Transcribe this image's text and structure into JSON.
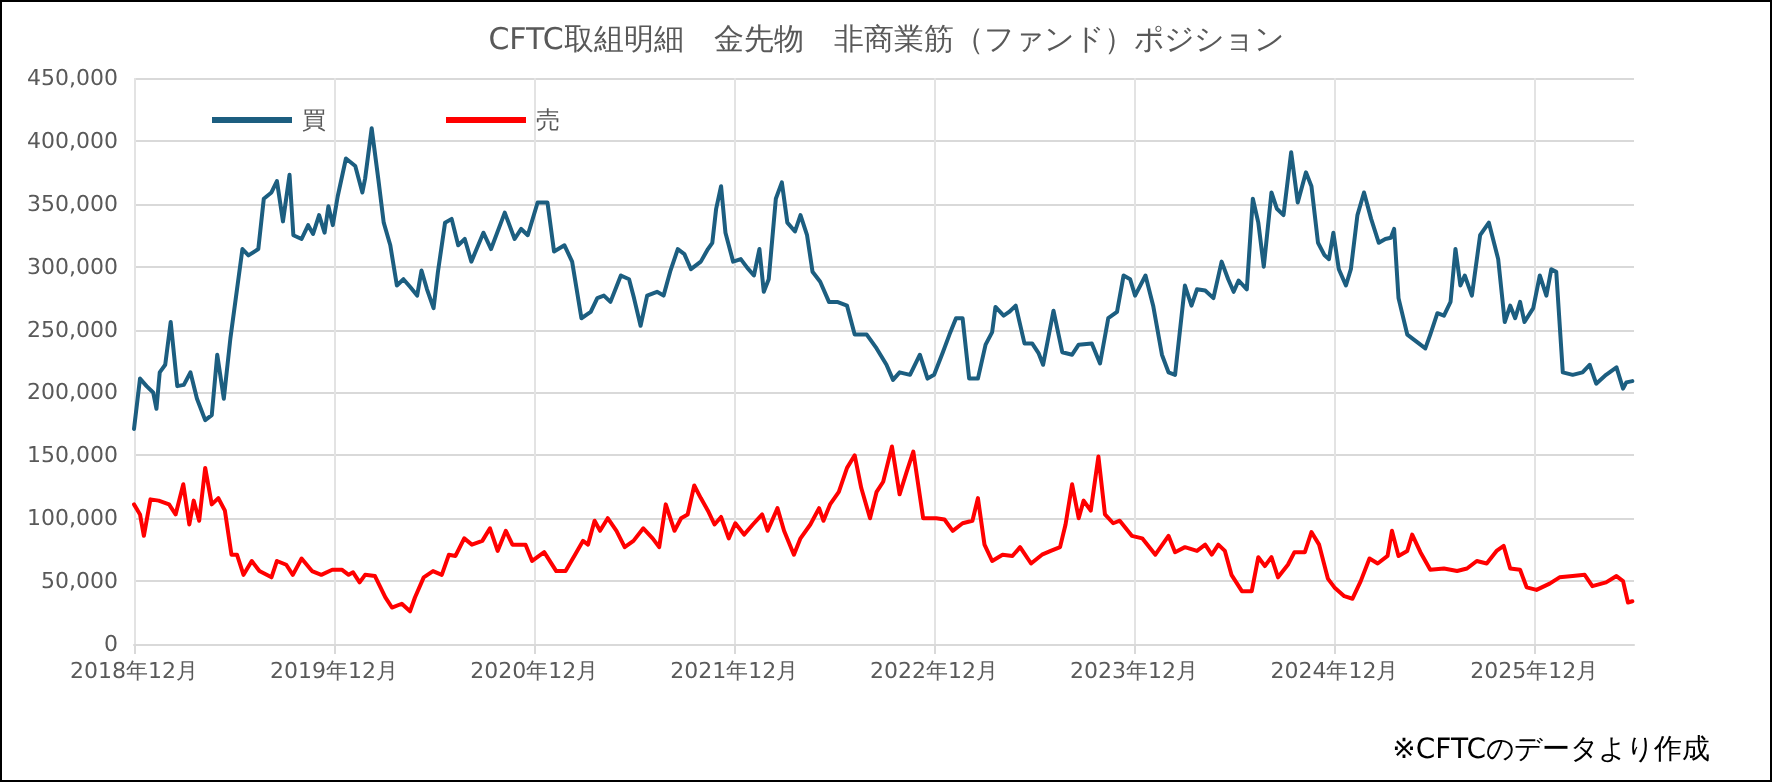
{
  "chart_data": {
    "type": "line",
    "title": "CFTC取組明細　金先物　非商業筋（ファンド）ポジション",
    "annotations": [
      "※CFTCのデータより作成"
    ],
    "xlim": [
      "2018-12-01",
      "2026-06-01"
    ],
    "xticks": [
      {
        "value": "2018-12-01",
        "label": "2018年12月"
      },
      {
        "value": "2019-12-01",
        "label": "2019年12月"
      },
      {
        "value": "2020-12-01",
        "label": "2020年12月"
      },
      {
        "value": "2021-12-01",
        "label": "2021年12月"
      },
      {
        "value": "2022-12-01",
        "label": "2022年12月"
      },
      {
        "value": "2023-12-01",
        "label": "2023年12月"
      },
      {
        "value": "2024-12-01",
        "label": "2024年12月"
      },
      {
        "value": "2025-12-01",
        "label": "2025年12月"
      }
    ],
    "ylim": [
      0,
      450000
    ],
    "yticks": [
      {
        "value": 0,
        "label": "0"
      },
      {
        "value": 50000,
        "label": "50,000"
      },
      {
        "value": 100000,
        "label": "100,000"
      },
      {
        "value": 150000,
        "label": "150,000"
      },
      {
        "value": 200000,
        "label": "200,000"
      },
      {
        "value": 250000,
        "label": "250,000"
      },
      {
        "value": 300000,
        "label": "300,000"
      },
      {
        "value": 350000,
        "label": "350,000"
      },
      {
        "value": 400000,
        "label": "400,000"
      },
      {
        "value": 450000,
        "label": "450,000"
      }
    ],
    "grid": true,
    "legend": "top left",
    "marker": "none",
    "line_style": "solid",
    "series": [
      {
        "name": "買",
        "color": "#1c5e80",
        "x": [
          "2018-12-01",
          "2018-12-12",
          "2018-12-24",
          "2019-01-05",
          "2019-01-11",
          "2019-01-17",
          "2019-01-27",
          "2019-02-06",
          "2019-02-18",
          "2019-03-02",
          "2019-03-14",
          "2019-03-26",
          "2019-04-10",
          "2019-04-22",
          "2019-05-02",
          "2019-05-14",
          "2019-05-26",
          "2019-06-17",
          "2019-06-28",
          "2019-07-16",
          "2019-07-26",
          "2019-08-09",
          "2019-08-19",
          "2019-08-30",
          "2019-09-11",
          "2019-09-18",
          "2019-10-03",
          "2019-10-15",
          "2019-10-24",
          "2019-11-04",
          "2019-11-14",
          "2019-11-21",
          "2019-11-29",
          "2019-12-08",
          "2019-12-23",
          "2020-01-09",
          "2020-01-22",
          "2020-01-27",
          "2020-02-08",
          "2020-02-20",
          "2020-03-01",
          "2020-03-13",
          "2020-03-25",
          "2020-04-06",
          "2020-04-18",
          "2020-05-01",
          "2020-05-09",
          "2020-05-19",
          "2020-05-31",
          "2020-06-08",
          "2020-06-21",
          "2020-07-03",
          "2020-07-15",
          "2020-07-27",
          "2020-08-08",
          "2020-08-30",
          "2020-09-13",
          "2020-10-08",
          "2020-10-26",
          "2020-11-07",
          "2020-11-19",
          "2020-12-07",
          "2020-12-25",
          "2021-01-06",
          "2021-01-25",
          "2021-02-08",
          "2021-02-25",
          "2021-03-14",
          "2021-03-26",
          "2021-04-07",
          "2021-04-19",
          "2021-05-08",
          "2021-05-23",
          "2021-06-01",
          "2021-06-13",
          "2021-06-25",
          "2021-07-13",
          "2021-07-25",
          "2021-08-06",
          "2021-08-20",
          "2021-09-01",
          "2021-09-13",
          "2021-10-01",
          "2021-10-14",
          "2021-10-22",
          "2021-10-29",
          "2021-11-07",
          "2021-11-15",
          "2021-11-29",
          "2021-12-13",
          "2021-12-25",
          "2022-01-06",
          "2022-01-16",
          "2022-01-24",
          "2022-02-02",
          "2022-02-15",
          "2022-02-26",
          "2022-03-08",
          "2022-03-22",
          "2022-04-01",
          "2022-04-13",
          "2022-04-23",
          "2022-05-07",
          "2022-05-23",
          "2022-06-07",
          "2022-06-25",
          "2022-07-09",
          "2022-07-31",
          "2022-08-18",
          "2022-09-05",
          "2022-09-17",
          "2022-09-29",
          "2022-10-18",
          "2022-11-05",
          "2022-11-19",
          "2022-12-01",
          "2022-12-17",
          "2022-12-29",
          "2023-01-10",
          "2023-01-22",
          "2023-02-03",
          "2023-02-19",
          "2023-03-05",
          "2023-03-17",
          "2023-03-23",
          "2023-04-07",
          "2023-04-17",
          "2023-04-29",
          "2023-05-15",
          "2023-05-29",
          "2023-06-10",
          "2023-06-18",
          "2023-07-07",
          "2023-07-23",
          "2023-08-10",
          "2023-08-22",
          "2023-09-15",
          "2023-09-30",
          "2023-10-15",
          "2023-10-31",
          "2023-11-12",
          "2023-11-24",
          "2023-12-03",
          "2023-12-22",
          "2024-01-05",
          "2024-01-21",
          "2024-02-02",
          "2024-02-14",
          "2024-03-03",
          "2024-03-15",
          "2024-03-25",
          "2024-04-09",
          "2024-04-24",
          "2024-05-09",
          "2024-05-21",
          "2024-05-31",
          "2024-06-09",
          "2024-06-24",
          "2024-07-05",
          "2024-07-15",
          "2024-07-25",
          "2024-08-08",
          "2024-08-18",
          "2024-08-30",
          "2024-09-13",
          "2024-09-25",
          "2024-10-10",
          "2024-10-20",
          "2024-11-01",
          "2024-11-13",
          "2024-11-21",
          "2024-11-29",
          "2024-12-09",
          "2024-12-22",
          "2024-12-31",
          "2025-01-12",
          "2025-01-24",
          "2025-02-06",
          "2025-02-20",
          "2025-03-04",
          "2025-03-14",
          "2025-03-20",
          "2025-03-28",
          "2025-04-13",
          "2025-05-01",
          "2025-05-16",
          "2025-05-25",
          "2025-06-07",
          "2025-06-19",
          "2025-07-01",
          "2025-07-10",
          "2025-07-19",
          "2025-07-27",
          "2025-08-09",
          "2025-08-24",
          "2025-09-09",
          "2025-09-26",
          "2025-10-08",
          "2025-10-18",
          "2025-10-27",
          "2025-11-05",
          "2025-11-13",
          "2025-11-29",
          "2025-12-11",
          "2025-12-23",
          "2026-01-01",
          "2026-01-10",
          "2026-01-22",
          "2026-02-09",
          "2026-02-27",
          "2026-03-12",
          "2026-03-24",
          "2026-04-11",
          "2026-04-30",
          "2026-05-12",
          "2026-05-18",
          "2026-05-29"
        ],
        "values": [
          171000,
          211000,
          205000,
          200000,
          187000,
          216000,
          222000,
          256000,
          205000,
          206000,
          216000,
          195000,
          178000,
          182000,
          230000,
          195000,
          243000,
          314000,
          309000,
          314000,
          354000,
          359000,
          368000,
          336000,
          373000,
          325000,
          322000,
          333000,
          326000,
          341000,
          327000,
          348000,
          333000,
          356000,
          386000,
          380000,
          359000,
          370000,
          410000,
          370000,
          335000,
          317000,
          285000,
          290000,
          284000,
          277000,
          297000,
          282000,
          267000,
          296000,
          335000,
          338000,
          317000,
          322000,
          304000,
          327000,
          314000,
          343000,
          322000,
          330000,
          325000,
          351000,
          351000,
          312000,
          317000,
          304000,
          259000,
          264000,
          275000,
          277000,
          272000,
          293000,
          290000,
          275000,
          253000,
          277000,
          280000,
          277000,
          296000,
          314000,
          310000,
          298000,
          304000,
          314000,
          319000,
          346000,
          364000,
          327000,
          304000,
          306000,
          299000,
          293000,
          314000,
          280000,
          290000,
          354000,
          367000,
          335000,
          328000,
          341000,
          325000,
          296000,
          288000,
          272000,
          272000,
          269000,
          246000,
          246000,
          235000,
          222000,
          210000,
          216000,
          214000,
          230000,
          211000,
          214000,
          232000,
          246000,
          259000,
          259000,
          211000,
          211000,
          238000,
          248000,
          268000,
          261000,
          264000,
          269000,
          239000,
          239000,
          231000,
          222000,
          265000,
          232000,
          230000,
          238000,
          239000,
          223000,
          259000,
          264000,
          293000,
          290000,
          277000,
          293000,
          269000,
          230000,
          216000,
          214000,
          285000,
          269000,
          282000,
          281000,
          275000,
          304000,
          290000,
          280000,
          289000,
          282000,
          354000,
          335000,
          300000,
          359000,
          346000,
          341000,
          391000,
          351000,
          375000,
          364000,
          319000,
          309000,
          306000,
          327000,
          298000,
          285000,
          298000,
          341000,
          359000,
          338000,
          319000,
          322000,
          323000,
          330000,
          275000,
          246000,
          240000,
          235000,
          246000,
          263000,
          261000,
          272000,
          314000,
          285000,
          293000,
          277000,
          325000,
          335000,
          306000,
          256000,
          269000,
          259000,
          272000,
          256000,
          267000,
          293000,
          277000,
          298000,
          296000,
          216000,
          214000,
          216000,
          222000,
          207000,
          214000,
          220000,
          203000,
          208000,
          209000
        ]
      },
      {
        "name": "売",
        "color": "#ff0000",
        "x": [
          "2018-12-01",
          "2018-12-12",
          "2018-12-19",
          "2018-12-31",
          "2019-01-15",
          "2019-02-03",
          "2019-02-15",
          "2019-03-01",
          "2019-03-12",
          "2019-03-20",
          "2019-03-30",
          "2019-04-10",
          "2019-04-22",
          "2019-05-04",
          "2019-05-16",
          "2019-05-28",
          "2019-06-07",
          "2019-06-19",
          "2019-07-04",
          "2019-07-18",
          "2019-08-09",
          "2019-08-19",
          "2019-09-05",
          "2019-09-17",
          "2019-10-03",
          "2019-10-22",
          "2019-11-08",
          "2019-11-28",
          "2019-12-16",
          "2019-12-28",
          "2020-01-05",
          "2020-01-17",
          "2020-01-27",
          "2020-02-14",
          "2020-03-04",
          "2020-03-16",
          "2020-04-03",
          "2020-04-18",
          "2020-04-27",
          "2020-05-13",
          "2020-05-30",
          "2020-06-15",
          "2020-06-28",
          "2020-07-10",
          "2020-07-26",
          "2020-08-09",
          "2020-08-28",
          "2020-09-11",
          "2020-09-25",
          "2020-10-10",
          "2020-10-22",
          "2020-11-15",
          "2020-11-27",
          "2020-12-19",
          "2021-01-10",
          "2021-01-27",
          "2021-02-12",
          "2021-02-28",
          "2021-03-09",
          "2021-03-21",
          "2021-03-31",
          "2021-04-14",
          "2021-04-30",
          "2021-05-15",
          "2021-05-31",
          "2021-06-18",
          "2021-07-05",
          "2021-07-17",
          "2021-07-29",
          "2021-08-14",
          "2021-08-26",
          "2021-09-07",
          "2021-09-19",
          "2021-10-01",
          "2021-10-14",
          "2021-10-26",
          "2021-11-07",
          "2021-11-21",
          "2021-12-03",
          "2021-12-19",
          "2022-01-04",
          "2022-01-21",
          "2022-01-31",
          "2022-02-18",
          "2022-03-02",
          "2022-03-20",
          "2022-04-01",
          "2022-04-19",
          "2022-05-05",
          "2022-05-13",
          "2022-05-25",
          "2022-06-10",
          "2022-06-25",
          "2022-07-09",
          "2022-07-21",
          "2022-08-06",
          "2022-08-18",
          "2022-08-30",
          "2022-09-15",
          "2022-09-29",
          "2022-10-12",
          "2022-10-24",
          "2022-11-11",
          "2022-12-05",
          "2022-12-20",
          "2023-01-04",
          "2023-01-22",
          "2023-02-09",
          "2023-02-19",
          "2023-03-03",
          "2023-03-17",
          "2023-04-05",
          "2023-04-23",
          "2023-05-07",
          "2023-05-27",
          "2023-06-16",
          "2023-07-02",
          "2023-07-19",
          "2023-07-29",
          "2023-08-10",
          "2023-08-22",
          "2023-08-31",
          "2023-09-13",
          "2023-09-27",
          "2023-10-09",
          "2023-10-24",
          "2023-11-05",
          "2023-11-27",
          "2023-12-16",
          "2024-01-09",
          "2024-02-02",
          "2024-02-14",
          "2024-03-03",
          "2024-03-25",
          "2024-04-09",
          "2024-04-21",
          "2024-05-03",
          "2024-05-15",
          "2024-05-27",
          "2024-06-15",
          "2024-07-03",
          "2024-07-15",
          "2024-07-27",
          "2024-08-08",
          "2024-08-20",
          "2024-09-07",
          "2024-09-19",
          "2024-10-08",
          "2024-10-20",
          "2024-11-03",
          "2024-11-19",
          "2024-12-01",
          "2024-12-19",
          "2025-01-03",
          "2025-01-18",
          "2025-02-03",
          "2025-02-18",
          "2025-03-08",
          "2025-03-16",
          "2025-03-28",
          "2025-04-13",
          "2025-04-22",
          "2025-05-07",
          "2025-05-25",
          "2025-06-19",
          "2025-07-13",
          "2025-07-31",
          "2025-08-18",
          "2025-09-05",
          "2025-09-23",
          "2025-10-06",
          "2025-10-18",
          "2025-11-05",
          "2025-11-17",
          "2025-12-05",
          "2025-12-29",
          "2026-01-16",
          "2026-02-09",
          "2026-03-03",
          "2026-03-17",
          "2026-04-11",
          "2026-04-30",
          "2026-05-12",
          "2026-05-21",
          "2026-05-29"
        ],
        "values": [
          111000,
          103000,
          86000,
          115000,
          114000,
          111000,
          103000,
          127000,
          95000,
          114000,
          98000,
          140000,
          111000,
          116000,
          106000,
          71000,
          71000,
          55000,
          66000,
          58000,
          53000,
          66000,
          63000,
          55000,
          68000,
          58000,
          55000,
          59000,
          59000,
          55000,
          57000,
          49000,
          55000,
          54000,
          37000,
          29000,
          32000,
          26000,
          37000,
          53000,
          58000,
          55000,
          71000,
          70000,
          84000,
          79000,
          82000,
          92000,
          74000,
          90000,
          79000,
          79000,
          66000,
          73000,
          58000,
          58000,
          70000,
          82000,
          79000,
          98000,
          90000,
          100000,
          90000,
          77000,
          82000,
          92000,
          84000,
          77000,
          111000,
          90000,
          100000,
          103000,
          126000,
          116000,
          106000,
          95000,
          101000,
          84000,
          96000,
          87000,
          95000,
          103000,
          90000,
          108000,
          90000,
          71000,
          84000,
          95000,
          108000,
          98000,
          111000,
          121000,
          140000,
          150000,
          124000,
          100000,
          121000,
          129000,
          157000,
          119000,
          137000,
          153000,
          100000,
          100000,
          99000,
          90000,
          96000,
          98000,
          116000,
          79000,
          66000,
          71000,
          70000,
          77000,
          64000,
          71000,
          74000,
          77000,
          95000,
          127000,
          100000,
          114000,
          106000,
          149000,
          103000,
          96000,
          98000,
          86000,
          84000,
          71000,
          86000,
          73000,
          77000,
          74000,
          79000,
          71000,
          79000,
          74000,
          55000,
          42000,
          42000,
          69000,
          62000,
          69000,
          53000,
          63000,
          73000,
          73000,
          89000,
          79000,
          52000,
          45000,
          38000,
          36000,
          50000,
          68000,
          64000,
          70000,
          90000,
          70000,
          74000,
          87000,
          73000,
          59000,
          60000,
          58000,
          60000,
          66000,
          64000,
          74000,
          78000,
          60000,
          59000,
          45000,
          43000,
          48000,
          53000,
          54000,
          55000,
          46000,
          49000,
          54000,
          50000,
          33000,
          34000
        ]
      }
    ]
  }
}
